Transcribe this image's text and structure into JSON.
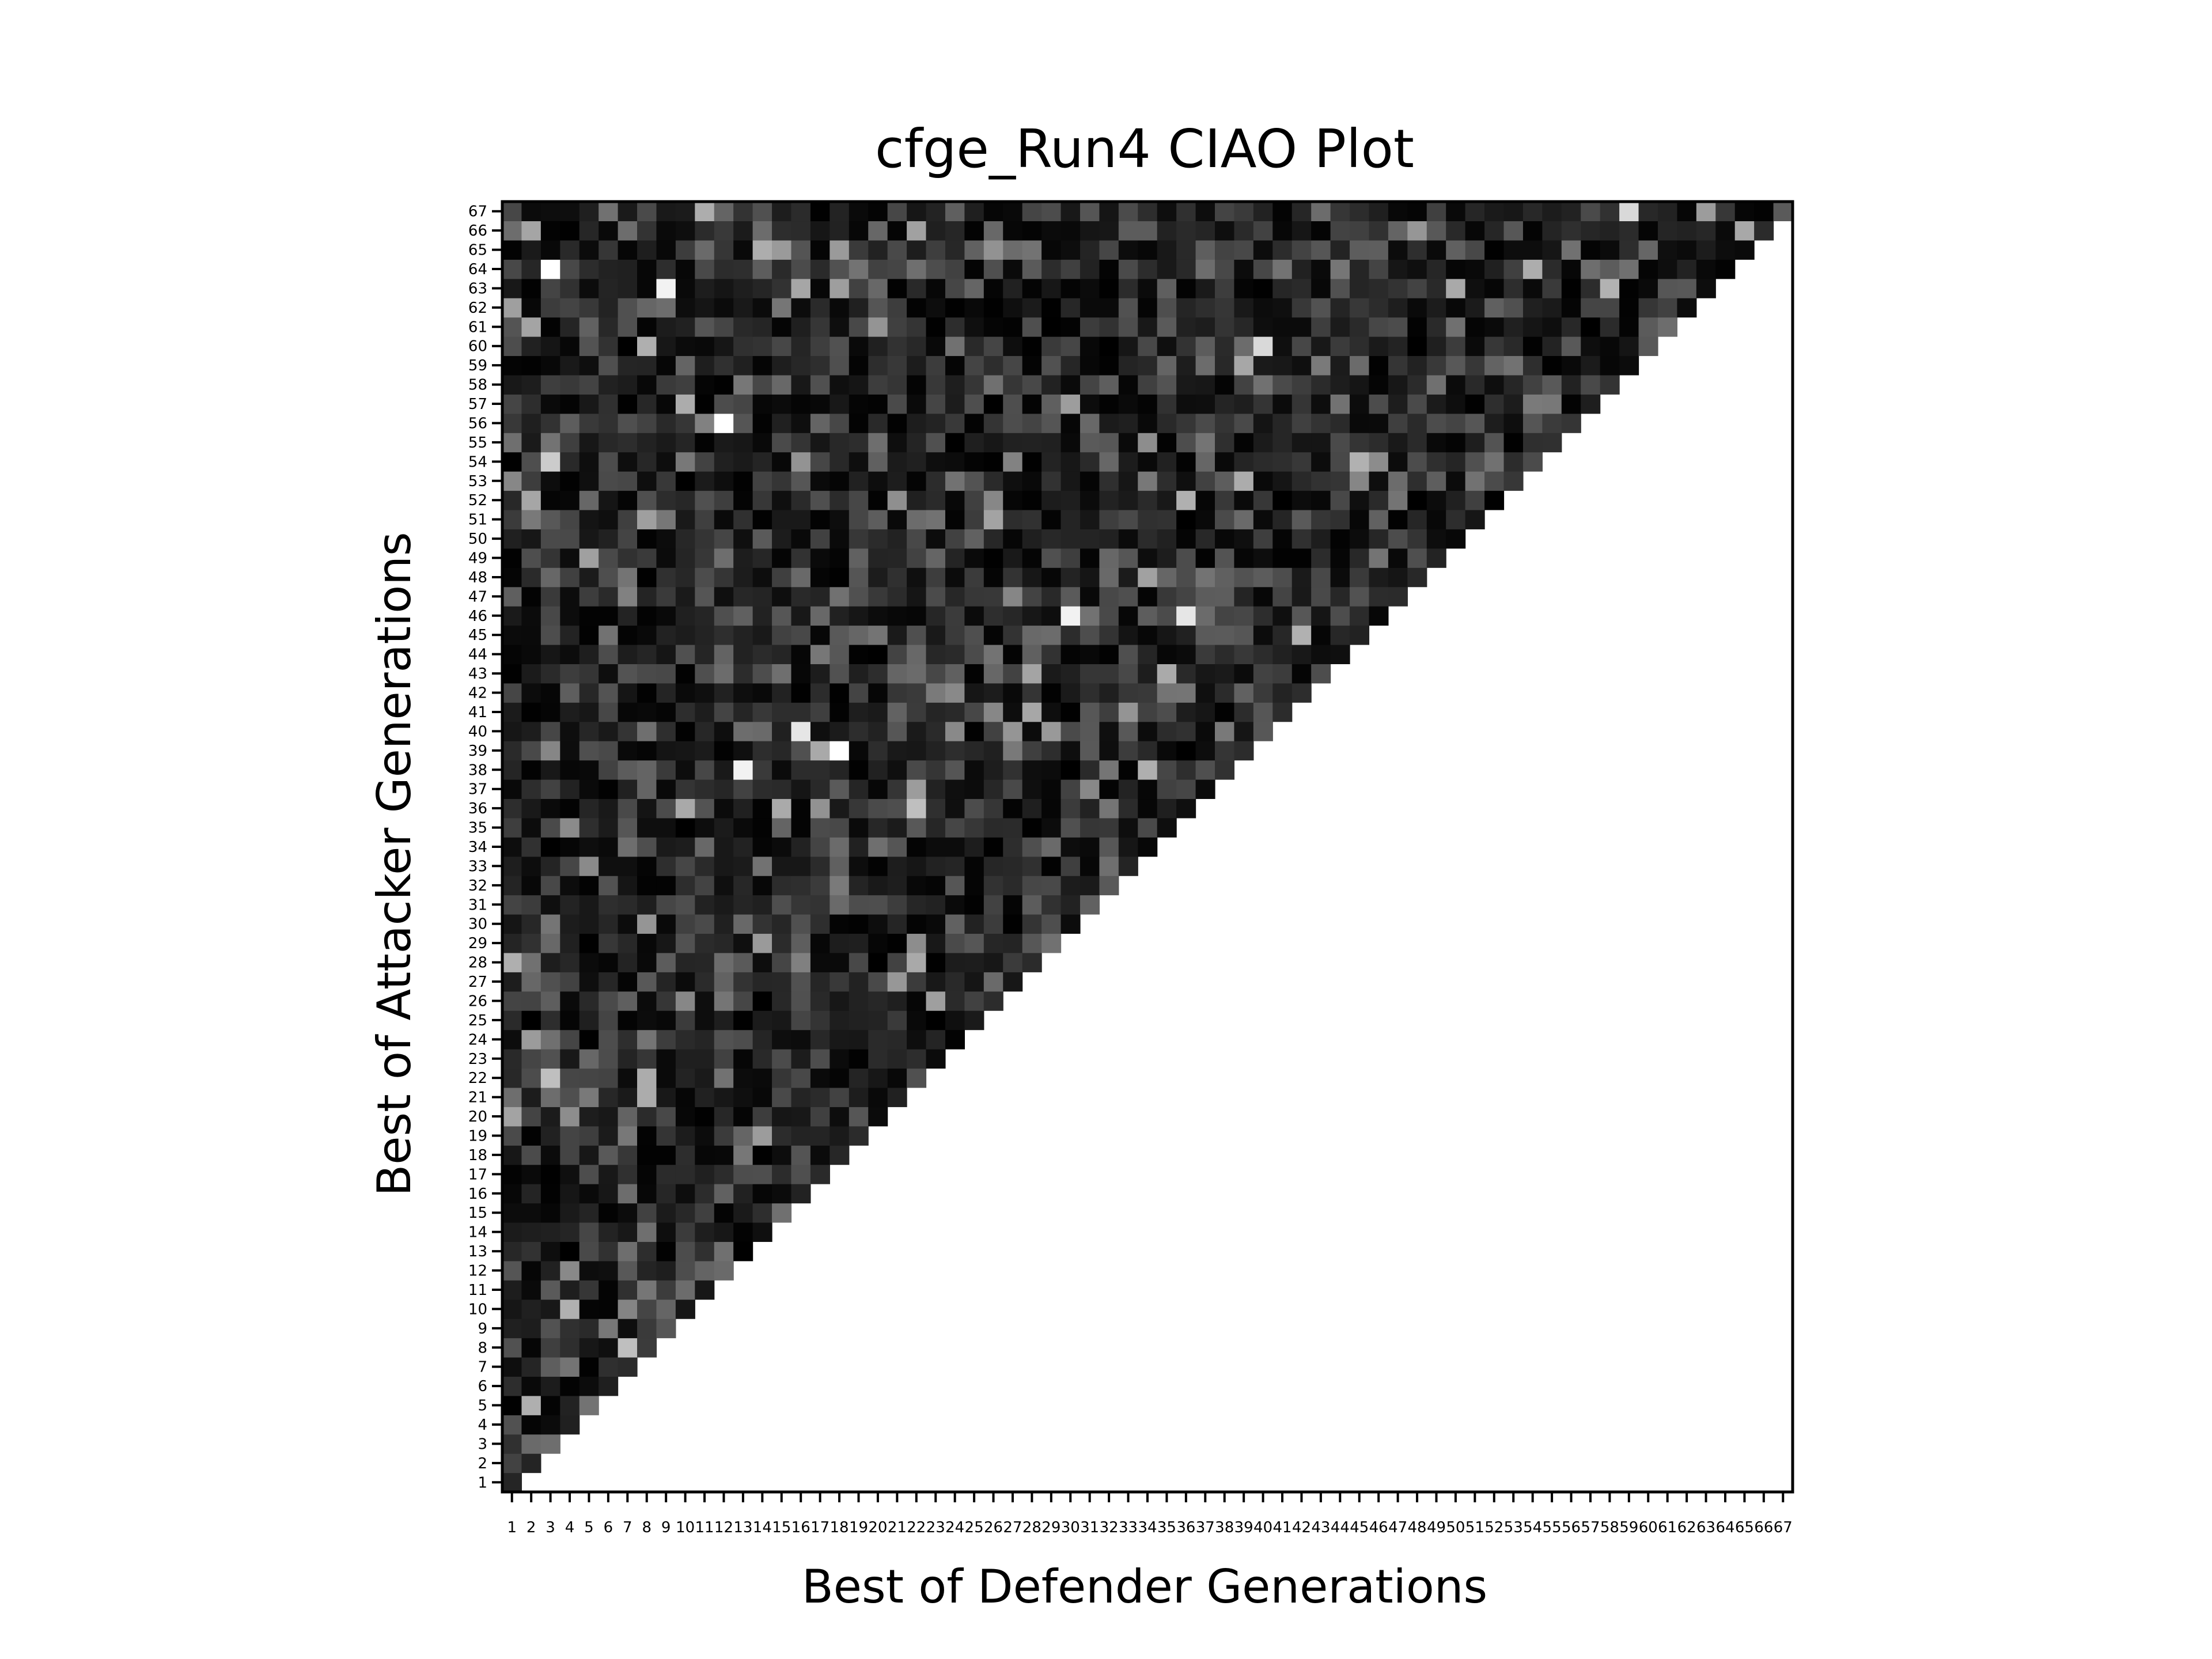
{
  "chart_data": {
    "type": "heatmap",
    "title": "cfge_Run4 CIAO Plot",
    "xlabel": "Best of Defender Generations",
    "ylabel": "Best of Attacker Generations",
    "n": 67,
    "x_categories": [
      "1",
      "2",
      "3",
      "4",
      "5",
      "6",
      "7",
      "8",
      "9",
      "10",
      "11",
      "12",
      "13",
      "14",
      "15",
      "16",
      "17",
      "18",
      "19",
      "20",
      "21",
      "22",
      "23",
      "24",
      "25",
      "26",
      "27",
      "28",
      "29",
      "30",
      "31",
      "32",
      "33",
      "34",
      "35",
      "36",
      "37",
      "38",
      "39",
      "40",
      "41",
      "42",
      "43",
      "44",
      "45",
      "46",
      "47",
      "48",
      "49",
      "50",
      "51",
      "52",
      "53",
      "54",
      "55",
      "56",
      "57",
      "58",
      "59",
      "60",
      "61",
      "62",
      "63",
      "64",
      "65",
      "66",
      "67"
    ],
    "y_categories": [
      "1",
      "2",
      "3",
      "4",
      "5",
      "6",
      "7",
      "8",
      "9",
      "10",
      "11",
      "12",
      "13",
      "14",
      "15",
      "16",
      "17",
      "18",
      "19",
      "20",
      "21",
      "22",
      "23",
      "24",
      "25",
      "26",
      "27",
      "28",
      "29",
      "30",
      "31",
      "32",
      "33",
      "34",
      "35",
      "36",
      "37",
      "38",
      "39",
      "40",
      "41",
      "42",
      "43",
      "44",
      "45",
      "46",
      "47",
      "48",
      "49",
      "50",
      "51",
      "52",
      "53",
      "54",
      "55",
      "56",
      "57",
      "58",
      "59",
      "60",
      "61",
      "62",
      "63",
      "64",
      "65",
      "66",
      "67"
    ],
    "colormap": "gray",
    "value_range": [
      0,
      1
    ],
    "mask": "cells where defender generation > attacker generation are empty (white)",
    "values_note": "lower triangle intensities; mostly dark with scattered light cells",
    "highlight_cells": [
      {
        "defender": 3,
        "attacker": 64,
        "value": 1.0
      },
      {
        "defender": 9,
        "attacker": 63,
        "value": 0.95
      },
      {
        "defender": 12,
        "attacker": 56,
        "value": 1.0
      },
      {
        "defender": 13,
        "attacker": 38,
        "value": 0.95
      },
      {
        "defender": 16,
        "attacker": 40,
        "value": 0.9
      },
      {
        "defender": 18,
        "attacker": 39,
        "value": 1.0
      },
      {
        "defender": 30,
        "attacker": 46,
        "value": 0.95
      },
      {
        "defender": 36,
        "attacker": 46,
        "value": 0.9
      },
      {
        "defender": 40,
        "attacker": 60,
        "value": 0.85
      },
      {
        "defender": 59,
        "attacker": 67,
        "value": 0.85
      },
      {
        "defender": 3,
        "attacker": 54,
        "value": 0.8
      },
      {
        "defender": 3,
        "attacker": 22,
        "value": 0.75
      },
      {
        "defender": 7,
        "attacker": 8,
        "value": 0.75
      },
      {
        "defender": 22,
        "attacker": 36,
        "value": 0.75
      }
    ]
  }
}
